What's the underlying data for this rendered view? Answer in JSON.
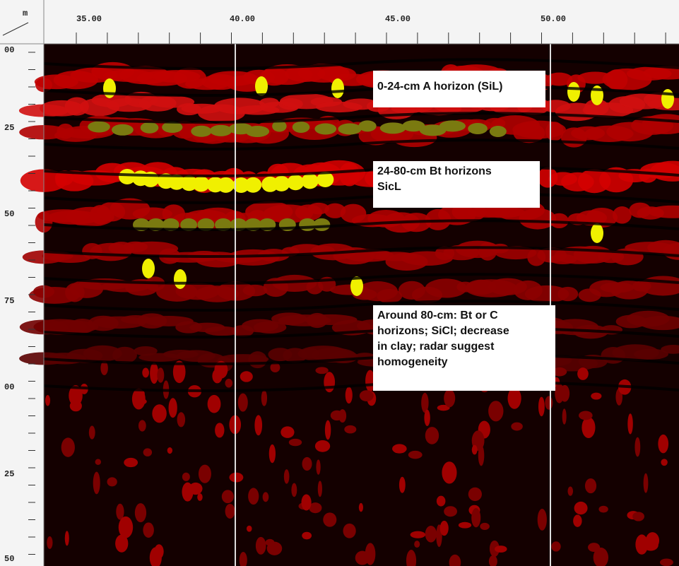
{
  "ruler": {
    "unit": "m",
    "top_labels": [
      "35.00",
      "40.00",
      "45.00",
      "50.00"
    ],
    "left_labels": [
      "00",
      "25",
      "50",
      "75",
      "00",
      "25",
      "50"
    ]
  },
  "annotations": [
    {
      "lines": [
        "0-24-cm A horizon (SiL)"
      ]
    },
    {
      "lines": [
        "24-80-cm Bt horizons",
        "SicL"
      ]
    },
    {
      "lines": [
        "Around 80-cm: Bt or C",
        "horizons; SiCl; decrease",
        "in clay; radar suggest",
        "homogeneity"
      ]
    }
  ]
}
